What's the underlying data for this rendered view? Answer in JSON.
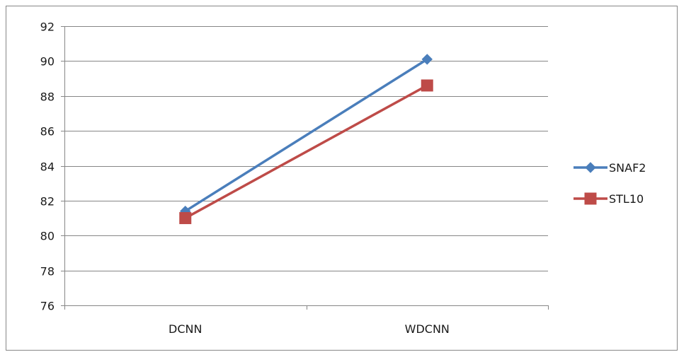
{
  "chart_data": {
    "type": "line",
    "title": "",
    "xlabel": "",
    "ylabel": "",
    "categories": [
      "DCNN",
      "WDCNN"
    ],
    "ylim": [
      76,
      92
    ],
    "yticks": [
      76,
      78,
      80,
      82,
      84,
      86,
      88,
      90,
      92
    ],
    "grid": "horizontal",
    "legend_position": "right",
    "series": [
      {
        "name": "SNAF2",
        "values": [
          81.4,
          90.1
        ],
        "color": "#4a7ebb",
        "marker": "diamond"
      },
      {
        "name": "STL10",
        "values": [
          81.0,
          88.6
        ],
        "color": "#be4b48",
        "marker": "square"
      }
    ]
  }
}
